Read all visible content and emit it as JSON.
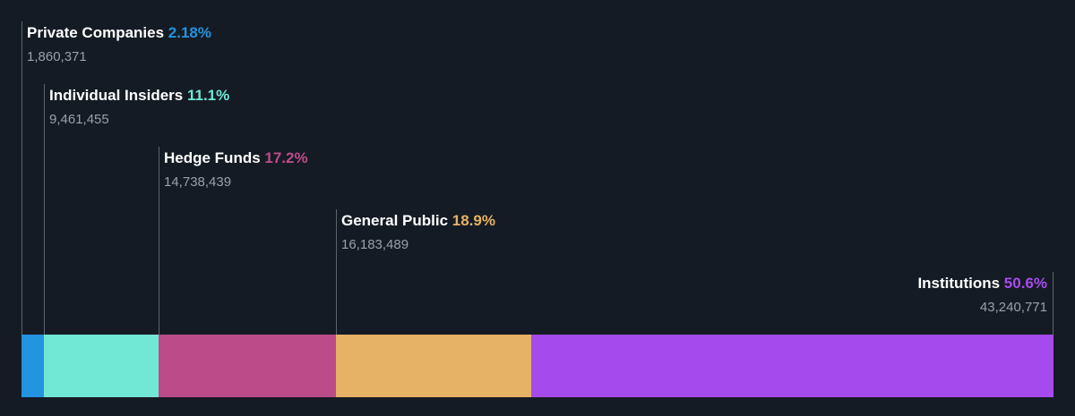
{
  "chart_data": {
    "type": "bar",
    "orientation": "horizontal-stacked-100",
    "series": [
      {
        "name": "Private Companies",
        "percent_label": "2.18%",
        "shares_label": "1,860,371",
        "value": 2.18,
        "color": "#2394df"
      },
      {
        "name": "Individual Insiders",
        "percent_label": "11.1%",
        "shares_label": "9,461,455",
        "value": 11.1,
        "color": "#71e7d6"
      },
      {
        "name": "Hedge Funds",
        "percent_label": "17.2%",
        "shares_label": "14,738,439",
        "value": 17.2,
        "color": "#bc4b8a"
      },
      {
        "name": "General Public",
        "percent_label": "18.9%",
        "shares_label": "16,183,489",
        "value": 18.9,
        "color": "#e6b265"
      },
      {
        "name": "Institutions",
        "percent_label": "50.6%",
        "shares_label": "43,240,771",
        "value": 50.6,
        "color": "#a54bed"
      }
    ]
  }
}
